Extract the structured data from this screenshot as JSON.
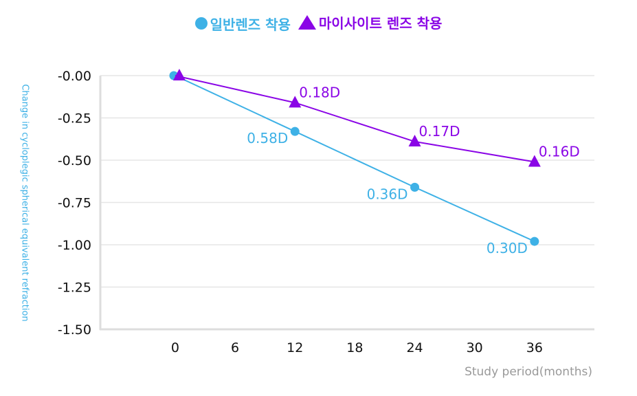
{
  "chart_data": {
    "type": "line",
    "title": "",
    "xlabel": "Study period(months)",
    "ylabel": "Change in cycloplegic spherical equivalent refraction",
    "x": [
      0,
      12,
      24,
      36
    ],
    "xticks": [
      "0",
      "6",
      "12",
      "18",
      "24",
      "30",
      "36"
    ],
    "xtick_values": [
      0,
      6,
      12,
      18,
      24,
      30,
      36
    ],
    "xlim": [
      -7.5,
      42
    ],
    "yticks": [
      "-0.00",
      "-0.25",
      "-0.50",
      "-0.75",
      "-1.00",
      "-1.25",
      "-1.50"
    ],
    "ytick_values": [
      0,
      -0.25,
      -0.5,
      -0.75,
      -1.0,
      -1.25,
      -1.5
    ],
    "ylim": [
      -1.5,
      0
    ],
    "grid": true,
    "legend_position": "top-center",
    "series": [
      {
        "name": "일반렌즈 착용",
        "marker": "circle",
        "color": "#3EB1E6",
        "values": [
          0.0,
          -0.33,
          -0.66,
          -0.98
        ],
        "annotations": [
          null,
          "0.58D",
          "0.36D",
          "0.30D"
        ]
      },
      {
        "name": "마이사이트 렌즈 착용",
        "marker": "triangle",
        "color": "#8A05E6",
        "values": [
          0.0,
          -0.16,
          -0.39,
          -0.51
        ],
        "annotations": [
          null,
          "0.18D",
          "0.17D",
          "0.16D"
        ]
      }
    ]
  },
  "colors": {
    "axis": "#DDDDDD",
    "grid": "#E6E6E6",
    "ylabel": "#3EB1E6",
    "xlabel": "#999999"
  }
}
